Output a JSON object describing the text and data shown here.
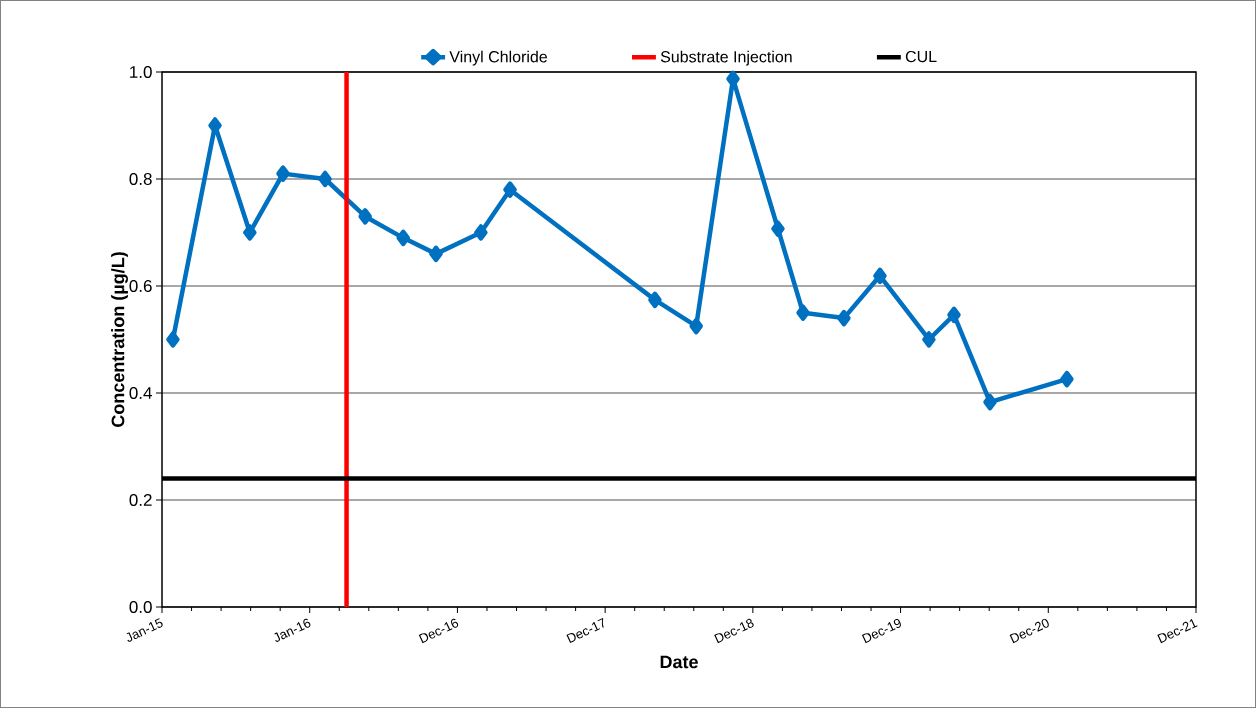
{
  "chart_data": {
    "type": "line",
    "xlabel": "Date",
    "ylabel": "Concentration (µg/L)",
    "x": [
      "2015-01-28",
      "2015-05-12",
      "2015-08-06",
      "2015-10-27",
      "2016-02-08",
      "2016-05-17",
      "2016-08-19",
      "2016-11-08",
      "2017-02-27",
      "2017-05-10",
      "2018-05-03",
      "2018-08-13",
      "2018-11-12",
      "2019-03-03",
      "2019-05-04",
      "2019-08-13",
      "2019-11-10",
      "2020-03-10",
      "2020-05-11",
      "2020-08-08",
      "2021-02-14"
    ],
    "series": [
      {
        "name": "Vinyl Chloride",
        "color": "#0070c0",
        "values": [
          0.5,
          0.9,
          0.7,
          0.81,
          0.8,
          0.73,
          0.69,
          0.66,
          0.7,
          0.78,
          0.574,
          0.525,
          0.987,
          0.707,
          0.55,
          0.54,
          0.619,
          0.5,
          0.546,
          0.383,
          0.426
        ]
      }
    ],
    "ref_lines": [
      {
        "axis": "x",
        "value": "2016-04-01",
        "label": "Substrate Injection",
        "color": "#ff0000"
      },
      {
        "axis": "y",
        "value": 0.24,
        "label": "CUL",
        "color": "#000000"
      }
    ],
    "xlim": [
      "2015-01-01",
      "2021-12-30"
    ],
    "xticks": [
      {
        "value": "2015-01-01",
        "label": "Jan-15"
      },
      {
        "value": "2016-01-01",
        "label": "Jan-16"
      },
      {
        "value": "2016-12-31",
        "label": "Dec-16"
      },
      {
        "value": "2017-12-31",
        "label": "Dec-17"
      },
      {
        "value": "2018-12-31",
        "label": "Dec-18"
      },
      {
        "value": "2019-12-31",
        "label": "Dec-19"
      },
      {
        "value": "2020-12-30",
        "label": "Dec-20"
      },
      {
        "value": "2021-12-30",
        "label": "Dec-21"
      }
    ],
    "ylim": [
      0,
      1
    ],
    "yticks": [
      {
        "value": 0,
        "label": "0.0"
      },
      {
        "value": 0.2,
        "label": "0.2"
      },
      {
        "value": 0.4,
        "label": "0.4"
      },
      {
        "value": 0.6,
        "label": "0.6"
      },
      {
        "value": 0.8,
        "label": "0.8"
      },
      {
        "value": 1,
        "label": "1.0"
      }
    ],
    "grid": "y",
    "legend": "top",
    "marker": "diamond",
    "line_style": "solid"
  }
}
